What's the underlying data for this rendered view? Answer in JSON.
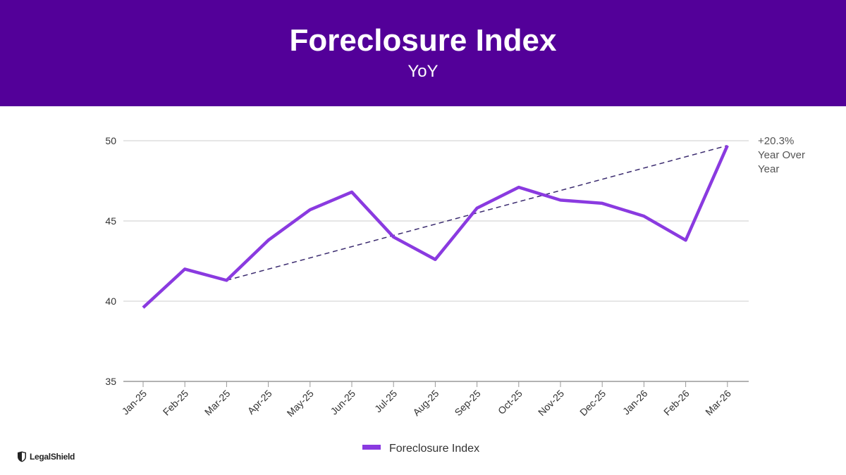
{
  "header": {
    "title": "Foreclosure Index",
    "subtitle": "YoY"
  },
  "brand": {
    "logo_text": "LegalShield"
  },
  "colors": {
    "header_bg": "#530099",
    "line": "#8a3ae0",
    "trend": "#3a2a6e"
  },
  "chart_data": {
    "type": "line",
    "title": "Foreclosure Index",
    "subtitle": "YoY",
    "categories": [
      "Jan-25",
      "Feb-25",
      "Mar-25",
      "Apr-25",
      "May-25",
      "Jun-25",
      "Jul-25",
      "Aug-25",
      "Sep-25",
      "Oct-25",
      "Nov-25",
      "Dec-25",
      "Jan-26",
      "Feb-26",
      "Mar-26"
    ],
    "series": [
      {
        "name": "Foreclosure Index",
        "values": [
          39.6,
          42.0,
          41.3,
          43.8,
          45.7,
          46.8,
          44.0,
          42.6,
          45.8,
          47.1,
          46.3,
          46.1,
          45.3,
          43.8,
          49.7
        ]
      }
    ],
    "trendline": {
      "from": "Mar-25",
      "to": "Mar-26",
      "style": "dashed"
    },
    "annotation": [
      "+20.3%",
      "Year Over",
      "Year"
    ],
    "yticks": [
      35,
      40,
      45,
      50
    ],
    "ylim": [
      35,
      50
    ],
    "grid": true,
    "legend": "bottom-center"
  }
}
